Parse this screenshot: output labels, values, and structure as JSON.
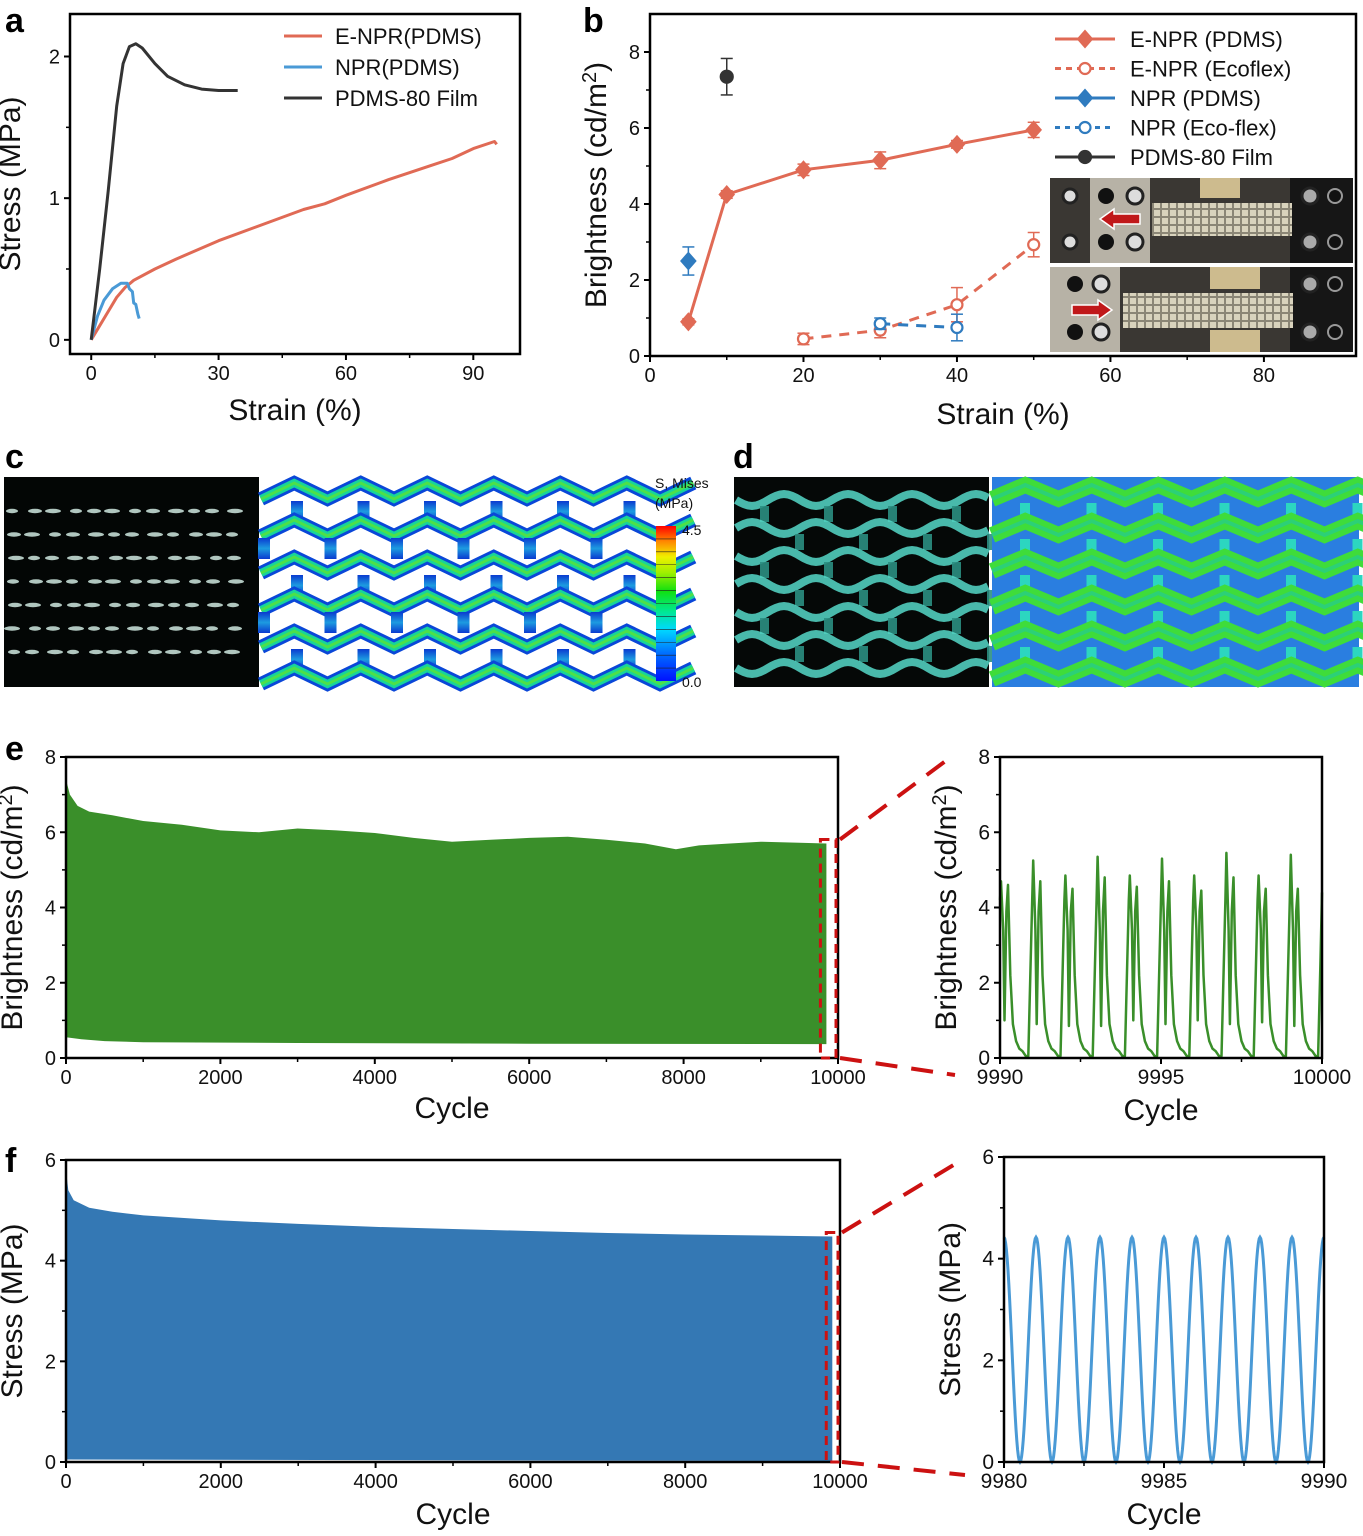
{
  "figure": {
    "panels": [
      "a",
      "b",
      "c",
      "d",
      "e",
      "f"
    ]
  },
  "colors": {
    "enpr": "#e06a55",
    "npr": "#4a9ad6",
    "npr_b": "#2f7bbf",
    "film": "#333333",
    "green": "#3a8f2a",
    "blue_fill": "#3478b4",
    "zoom_box": "#cc1111"
  },
  "chart_data": [
    {
      "id": "a",
      "type": "line",
      "xlabel": "Strain (%)",
      "ylabel": "Stress (MPa)",
      "xlim": [
        -5,
        101
      ],
      "ylim": [
        -0.1,
        2.3
      ],
      "xticks": [
        0,
        30,
        60,
        90
      ],
      "yticks": [
        0,
        1,
        2
      ],
      "legend_position": "top-right",
      "series": [
        {
          "name": "E-NPR(PDMS)",
          "color_key": "enpr",
          "points": [
            [
              0,
              0
            ],
            [
              2,
              0.1
            ],
            [
              4,
              0.2
            ],
            [
              6,
              0.3
            ],
            [
              8,
              0.37
            ],
            [
              10,
              0.42
            ],
            [
              15,
              0.5
            ],
            [
              20,
              0.57
            ],
            [
              30,
              0.7
            ],
            [
              40,
              0.81
            ],
            [
              50,
              0.92
            ],
            [
              55,
              0.96
            ],
            [
              60,
              1.02
            ],
            [
              70,
              1.13
            ],
            [
              80,
              1.23
            ],
            [
              85,
              1.28
            ],
            [
              90,
              1.35
            ],
            [
              95,
              1.4
            ],
            [
              95.5,
              1.38
            ]
          ]
        },
        {
          "name": "NPR(PDMS)",
          "color_key": "npr",
          "points": [
            [
              0,
              0
            ],
            [
              1.5,
              0.17
            ],
            [
              3,
              0.28
            ],
            [
              5,
              0.36
            ],
            [
              7,
              0.4
            ],
            [
              8.5,
              0.4
            ],
            [
              9,
              0.36
            ],
            [
              9.7,
              0.34
            ],
            [
              10,
              0.26
            ],
            [
              10.5,
              0.25
            ],
            [
              11,
              0.18
            ],
            [
              11.3,
              0.15
            ]
          ]
        },
        {
          "name": "PDMS-80 Film",
          "color_key": "film",
          "points": [
            [
              0,
              0
            ],
            [
              2,
              0.5
            ],
            [
              4,
              1.05
            ],
            [
              6,
              1.65
            ],
            [
              7.5,
              1.95
            ],
            [
              9,
              2.07
            ],
            [
              10.5,
              2.09
            ],
            [
              12,
              2.06
            ],
            [
              15,
              1.95
            ],
            [
              18,
              1.86
            ],
            [
              22,
              1.8
            ],
            [
              26,
              1.77
            ],
            [
              30,
              1.76
            ],
            [
              34.5,
              1.76
            ]
          ]
        }
      ]
    },
    {
      "id": "b",
      "type": "scatter",
      "xlabel": "Strain (%)",
      "ylabel": "Brightness (cd/m²)",
      "ylabel_main": "Brightness (cd/m",
      "ylabel_sup": "2",
      "ylabel_end": ")",
      "xlim": [
        0,
        92
      ],
      "ylim": [
        0,
        9
      ],
      "xticks": [
        0,
        20,
        40,
        60,
        80
      ],
      "yticks": [
        0,
        2,
        4,
        6,
        8
      ],
      "legend_position": "top-right",
      "inset": "photos of stretching device (compressed and stretched states with red arrows)",
      "series": [
        {
          "name": "E-NPR (PDMS)",
          "color_key": "enpr",
          "marker": "diamond",
          "filled": true,
          "line": "solid",
          "x": [
            5,
            10,
            20,
            30,
            40,
            50
          ],
          "y": [
            0.9,
            4.25,
            4.9,
            5.15,
            5.57,
            5.95
          ],
          "err": [
            0.08,
            0.1,
            0.15,
            0.22,
            0.1,
            0.2
          ]
        },
        {
          "name": "E-NPR (Ecoflex)",
          "color_key": "enpr",
          "marker": "circle",
          "filled": false,
          "line": "dashed",
          "x": [
            20,
            30,
            40,
            50
          ],
          "y": [
            0.45,
            0.68,
            1.35,
            2.93
          ],
          "err": [
            0.15,
            0.2,
            0.45,
            0.32
          ]
        },
        {
          "name": "NPR (PDMS)",
          "color_key": "npr_b",
          "marker": "diamond",
          "filled": true,
          "line": "solid",
          "x": [
            5
          ],
          "y": [
            2.5
          ],
          "err": [
            0.37
          ]
        },
        {
          "name": "NPR (Eco-flex)",
          "color_key": "npr_b",
          "marker": "circle",
          "filled": false,
          "line": "dotted",
          "x": [
            30,
            40
          ],
          "y": [
            0.85,
            0.75
          ],
          "err": [
            0.15,
            0.35
          ]
        },
        {
          "name": "PDMS-80 Film",
          "color_key": "film",
          "marker": "circle",
          "filled": true,
          "line": "solid",
          "x": [
            10
          ],
          "y": [
            7.35
          ],
          "err": [
            0.48
          ]
        }
      ]
    },
    {
      "id": "c",
      "type": "heatmap",
      "description": "Luminescence photo (unstretched) and FEA von Mises stress map",
      "colorbar": {
        "title_line1": "S, Mises",
        "title_line2": "(MPa)",
        "max_label": "4.5",
        "min_label": "0.0",
        "min": 0.0,
        "max": 4.5
      }
    },
    {
      "id": "d",
      "type": "heatmap",
      "description": "Luminescence photo (stretched) and FEA von Mises stress map"
    },
    {
      "id": "e-main",
      "type": "area",
      "xlabel": "Cycle",
      "ylabel_main": "Brightness (cd/m",
      "ylabel_sup": "2",
      "ylabel_end": ")",
      "xlim": [
        0,
        10000
      ],
      "ylim": [
        0,
        8
      ],
      "xticks": [
        0,
        2000,
        4000,
        6000,
        8000,
        10000
      ],
      "yticks": [
        0,
        2,
        4,
        6,
        8
      ],
      "envelope_upper": [
        [
          0,
          7.4
        ],
        [
          50,
          7.0
        ],
        [
          150,
          6.7
        ],
        [
          300,
          6.55
        ],
        [
          600,
          6.45
        ],
        [
          1000,
          6.3
        ],
        [
          1500,
          6.2
        ],
        [
          2000,
          6.05
        ],
        [
          2500,
          6.0
        ],
        [
          3000,
          6.1
        ],
        [
          3500,
          6.05
        ],
        [
          4000,
          5.98
        ],
        [
          4500,
          5.85
        ],
        [
          5000,
          5.75
        ],
        [
          5500,
          5.8
        ],
        [
          6000,
          5.85
        ],
        [
          6500,
          5.88
        ],
        [
          7000,
          5.8
        ],
        [
          7500,
          5.7
        ],
        [
          7900,
          5.55
        ],
        [
          8200,
          5.65
        ],
        [
          8600,
          5.7
        ],
        [
          9000,
          5.75
        ],
        [
          9500,
          5.72
        ],
        [
          9850,
          5.7
        ]
      ],
      "envelope_lower": [
        [
          0,
          0.55
        ],
        [
          200,
          0.5
        ],
        [
          500,
          0.45
        ],
        [
          1000,
          0.42
        ],
        [
          3000,
          0.4
        ],
        [
          6000,
          0.38
        ],
        [
          9850,
          0.37
        ]
      ],
      "zoom_window": [
        9850,
        10000
      ]
    },
    {
      "id": "e-zoom",
      "type": "line",
      "xlabel": "Cycle",
      "ylabel_main": "Brightness (cd/m",
      "ylabel_sup": "2",
      "ylabel_end": ")",
      "xlim": [
        9990,
        10000
      ],
      "ylim": [
        0,
        8
      ],
      "xticks": [
        9990,
        9995,
        10000
      ],
      "yticks": [
        0,
        2,
        4,
        6,
        8
      ],
      "cycles": 10,
      "peak_pairs": [
        [
          4.7,
          4.6
        ],
        [
          5.25,
          4.7
        ],
        [
          4.85,
          4.5
        ],
        [
          5.35,
          4.8
        ],
        [
          4.85,
          4.55
        ],
        [
          5.3,
          4.7
        ],
        [
          4.85,
          4.45
        ],
        [
          5.45,
          4.8
        ],
        [
          4.85,
          4.5
        ],
        [
          5.4,
          4.5
        ]
      ],
      "valley_mid": [
        1.0,
        0.9,
        0.85,
        0.85,
        1.0,
        0.9,
        1.0,
        0.9,
        0.95,
        0.85
      ],
      "min_value": 0.05
    },
    {
      "id": "f-main",
      "type": "area",
      "xlabel": "Cycle",
      "ylabel": "Stress (MPa)",
      "xlim": [
        0,
        10000
      ],
      "ylim": [
        0,
        6
      ],
      "xticks": [
        0,
        2000,
        4000,
        6000,
        8000,
        10000
      ],
      "yticks": [
        0,
        2,
        4,
        6
      ],
      "envelope_upper": [
        [
          0,
          5.8
        ],
        [
          30,
          5.4
        ],
        [
          100,
          5.2
        ],
        [
          300,
          5.05
        ],
        [
          600,
          4.97
        ],
        [
          1000,
          4.9
        ],
        [
          2000,
          4.8
        ],
        [
          3000,
          4.73
        ],
        [
          4000,
          4.67
        ],
        [
          5000,
          4.63
        ],
        [
          6000,
          4.59
        ],
        [
          7000,
          4.55
        ],
        [
          8000,
          4.52
        ],
        [
          9000,
          4.5
        ],
        [
          9900,
          4.48
        ]
      ],
      "envelope_lower": [
        [
          0,
          0.05
        ],
        [
          9900,
          0.02
        ]
      ],
      "zoom_window": [
        9900,
        10000
      ]
    },
    {
      "id": "f-zoom",
      "type": "line",
      "xlabel": "Cycle",
      "ylabel": "Stress (MPa)",
      "xlim": [
        9980,
        9990
      ],
      "ylim": [
        0,
        6
      ],
      "xticks": [
        9980,
        9985,
        9990
      ],
      "yticks": [
        0,
        2,
        4,
        6
      ],
      "cycles": 10,
      "peak": 4.42,
      "valley": 0.0
    }
  ]
}
